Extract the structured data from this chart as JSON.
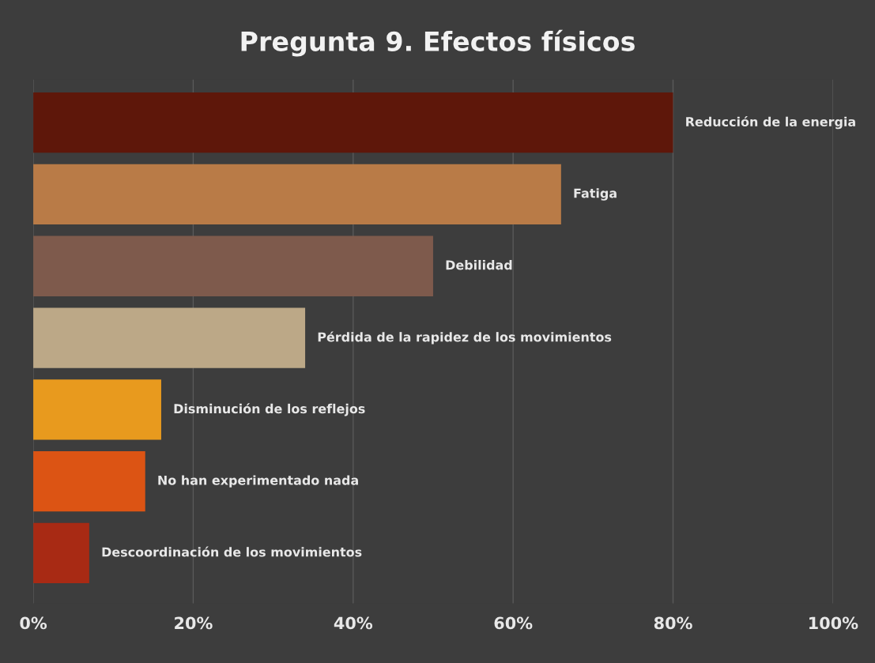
{
  "chart_data": {
    "type": "bar",
    "orientation": "horizontal",
    "title": "Pregunta 9. Efectos físicos",
    "categories": [
      "Reducción de la energia",
      "Fatiga",
      "Debilidad",
      "Pérdida de la rapidez de los movimientos",
      "Disminución de los reflejos",
      "No han experimentado nada",
      "Descoordinación de los movimientos"
    ],
    "values": [
      80,
      66,
      50,
      34,
      16,
      14,
      7
    ],
    "colors": [
      "#5e170a",
      "#b97b47",
      "#7e5a4c",
      "#bca887",
      "#e89a1e",
      "#dc5414",
      "#a82a14"
    ],
    "xlim": [
      0,
      100
    ],
    "xticks": [
      {
        "value": 0,
        "label": "0%"
      },
      {
        "value": 20,
        "label": "20%"
      },
      {
        "value": 40,
        "label": "40%"
      },
      {
        "value": 60,
        "label": "60%"
      },
      {
        "value": 80,
        "label": "80%"
      },
      {
        "value": 100,
        "label": "100%"
      }
    ],
    "grid": "x",
    "tick_labels": "x"
  }
}
